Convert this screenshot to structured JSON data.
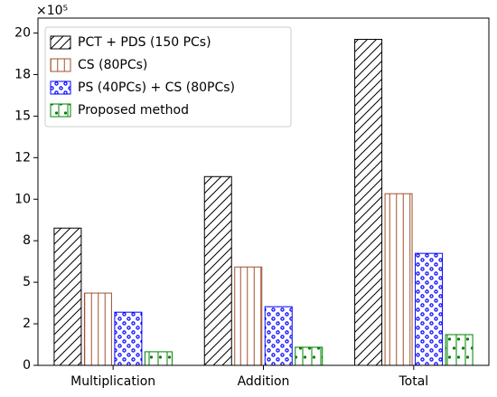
{
  "chart_data": {
    "type": "bar",
    "y_offset_label": "×10⁵",
    "categories": [
      "Multiplication",
      "Addition",
      "Total"
    ],
    "series": [
      {
        "name": "PCT + PDS (150 PCs)",
        "color": "#000000",
        "hatch": "//",
        "values": [
          8.26,
          11.36,
          19.62
        ]
      },
      {
        "name": "CS (80PCs)",
        "color": "#a0522d",
        "hatch": "||",
        "values": [
          4.35,
          5.92,
          10.33
        ]
      },
      {
        "name": "PS (40PCs) + CS (80PCs)",
        "color": "#0000ff",
        "hatch": "o",
        "values": [
          3.2,
          3.53,
          6.74
        ]
      },
      {
        "name": "Proposed method",
        "color": "#008000",
        "hatch": "|.",
        "values": [
          0.82,
          1.09,
          1.85
        ]
      }
    ],
    "ylim": [
      0,
      20.9
    ],
    "yticks": [
      0,
      {
        "value": 2.5,
        "label": "2"
      },
      5,
      {
        "value": 7.5,
        "label": "8"
      },
      10,
      {
        "value": 12.5,
        "label": "12"
      },
      15,
      {
        "value": 17.5,
        "label": "18"
      },
      20
    ],
    "legend": "upper left"
  }
}
